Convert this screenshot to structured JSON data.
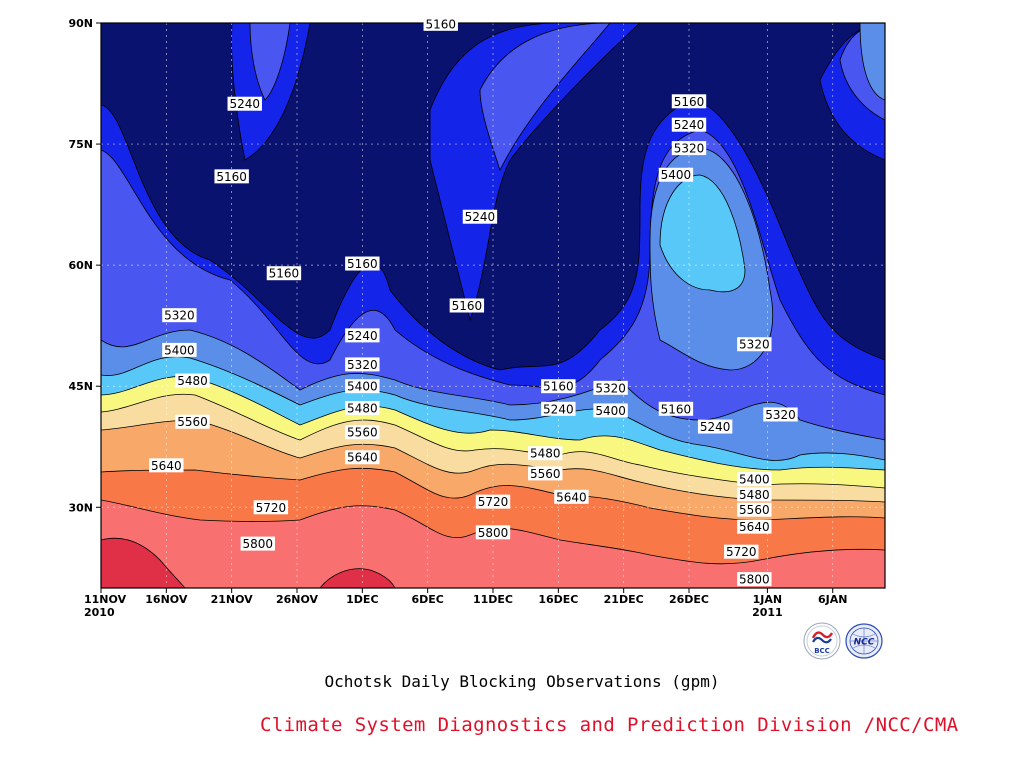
{
  "chart_data": {
    "type": "contour",
    "x_tick_labels": [
      "11NOV\n2010",
      "16NOV",
      "21NOV",
      "26NOV",
      "1DEC",
      "6DEC",
      "11DEC",
      "16DEC",
      "21DEC",
      "26DEC",
      "1JAN\n2011",
      "6JAN"
    ],
    "y_tick_labels": [
      "30N",
      "45N",
      "60N",
      "75N",
      "90N"
    ],
    "y_ticks": [
      30,
      45,
      60,
      75,
      90
    ],
    "ylim": [
      20,
      90
    ],
    "x_range": [
      "2010-11-11",
      "2011-01-10"
    ],
    "grid": true,
    "levels": [
      5160,
      5240,
      5320,
      5400,
      5480,
      5560,
      5640,
      5720,
      5800
    ],
    "level_colors": [
      "#0a1270",
      "#1424e8",
      "#4a56f0",
      "#5a8ee8",
      "#58c8f8",
      "#f8f880",
      "#f8dca0",
      "#f8a868",
      "#f87848",
      "#f87070",
      "#e03048"
    ],
    "contour_labels": [
      {
        "value": "5160",
        "date": "2010-12-07",
        "lat": 89.9
      },
      {
        "value": "5240",
        "date": "2010-11-22",
        "lat": 80.0
      },
      {
        "value": "5160",
        "date": "2010-11-21",
        "lat": 71.0
      },
      {
        "value": "5240",
        "date": "2010-12-10",
        "lat": 66.0
      },
      {
        "value": "5160",
        "date": "2010-11-25",
        "lat": 59.0
      },
      {
        "value": "5160",
        "date": "2010-12-01",
        "lat": 60.2
      },
      {
        "value": "5160",
        "date": "2010-12-09",
        "lat": 55.0
      },
      {
        "value": "5240",
        "date": "2010-12-01",
        "lat": 51.3
      },
      {
        "value": "5320",
        "date": "2010-11-17",
        "lat": 53.8
      },
      {
        "value": "5400",
        "date": "2010-11-17",
        "lat": 49.5
      },
      {
        "value": "5320",
        "date": "2010-12-01",
        "lat": 47.7
      },
      {
        "value": "5400",
        "date": "2010-12-01",
        "lat": 45.0
      },
      {
        "value": "5480",
        "date": "2010-11-18",
        "lat": 45.7
      },
      {
        "value": "5480",
        "date": "2010-12-01",
        "lat": 42.3
      },
      {
        "value": "5560",
        "date": "2010-11-18",
        "lat": 40.6
      },
      {
        "value": "5560",
        "date": "2010-12-01",
        "lat": 39.3
      },
      {
        "value": "5640",
        "date": "2010-11-16",
        "lat": 35.2
      },
      {
        "value": "5640",
        "date": "2010-12-01",
        "lat": 36.2
      },
      {
        "value": "5720",
        "date": "2010-11-24",
        "lat": 30.0
      },
      {
        "value": "5800",
        "date": "2010-11-23",
        "lat": 25.5
      },
      {
        "value": "5720",
        "date": "2010-12-11",
        "lat": 30.7
      },
      {
        "value": "5800",
        "date": "2010-12-11",
        "lat": 26.9
      },
      {
        "value": "5160",
        "date": "2010-12-16",
        "lat": 45.0
      },
      {
        "value": "5240",
        "date": "2010-12-16",
        "lat": 42.2
      },
      {
        "value": "5320",
        "date": "2010-12-20",
        "lat": 44.8
      },
      {
        "value": "5400",
        "date": "2010-12-20",
        "lat": 42.0
      },
      {
        "value": "5480",
        "date": "2010-12-15",
        "lat": 36.7
      },
      {
        "value": "5560",
        "date": "2010-12-15",
        "lat": 34.2
      },
      {
        "value": "5640",
        "date": "2010-12-17",
        "lat": 31.3
      },
      {
        "value": "5160",
        "date": "2010-12-26",
        "lat": 80.3
      },
      {
        "value": "5240",
        "date": "2010-12-26",
        "lat": 77.4
      },
      {
        "value": "5320",
        "date": "2010-12-26",
        "lat": 74.5
      },
      {
        "value": "5400",
        "date": "2010-12-25",
        "lat": 71.2
      },
      {
        "value": "5320",
        "date": "2010-12-31",
        "lat": 50.2
      },
      {
        "value": "5160",
        "date": "2010-12-25",
        "lat": 42.2
      },
      {
        "value": "5240",
        "date": "2010-12-28",
        "lat": 40.0
      },
      {
        "value": "5320",
        "date": "2011-01-02",
        "lat": 41.5
      },
      {
        "value": "5400",
        "date": "2010-12-31",
        "lat": 33.5
      },
      {
        "value": "5480",
        "date": "2010-12-31",
        "lat": 31.6
      },
      {
        "value": "5560",
        "date": "2010-12-31",
        "lat": 29.7
      },
      {
        "value": "5640",
        "date": "2010-12-31",
        "lat": 27.6
      },
      {
        "value": "5720",
        "date": "2010-12-30",
        "lat": 24.5
      },
      {
        "value": "5800",
        "date": "2010-12-31",
        "lat": 21.1
      }
    ]
  },
  "caption": "Ochotsk Daily Blocking Observations (gpm)",
  "credit": "Climate System Diagnostics and Prediction Division /NCC/CMA",
  "logos": {
    "left_text": "BCC",
    "right_text": "NCC",
    "left_color": "#1a3c9a",
    "right_color": "#2a4ab8"
  }
}
